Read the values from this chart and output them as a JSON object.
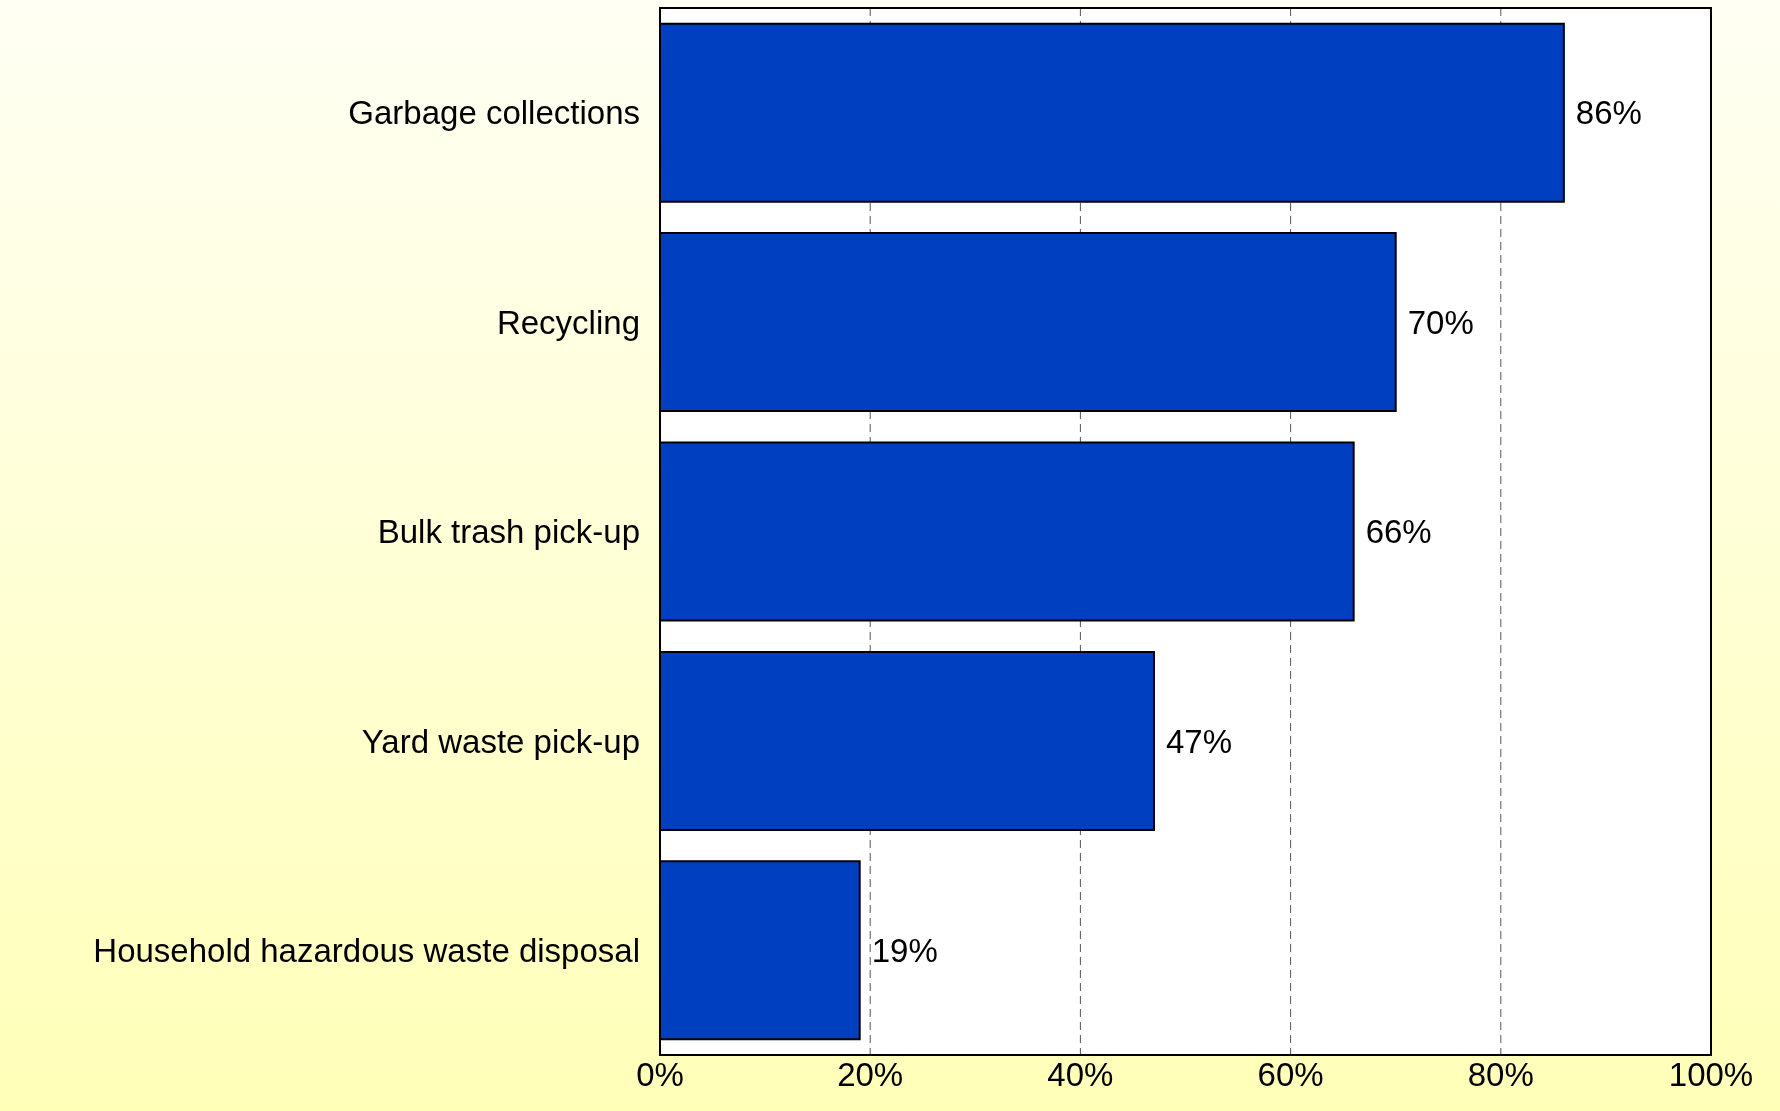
{
  "chart_data": {
    "type": "bar",
    "orientation": "horizontal",
    "categories": [
      "Garbage collections",
      "Recycling",
      "Bulk trash pick-up",
      "Yard waste pick-up",
      "Household hazardous waste disposal"
    ],
    "values": [
      86,
      70,
      66,
      47,
      19
    ],
    "value_labels": [
      "86%",
      "70%",
      "66%",
      "47%",
      "19%"
    ],
    "color": "#0040c0",
    "xlim": [
      0,
      100
    ],
    "xticks": [
      {
        "value": 0,
        "label": "0%"
      },
      {
        "value": 20,
        "label": "20%"
      },
      {
        "value": 40,
        "label": "40%"
      },
      {
        "value": 60,
        "label": "60%"
      },
      {
        "value": 80,
        "label": "80%"
      },
      {
        "value": 100,
        "label": "100%"
      }
    ],
    "grid": "x"
  }
}
